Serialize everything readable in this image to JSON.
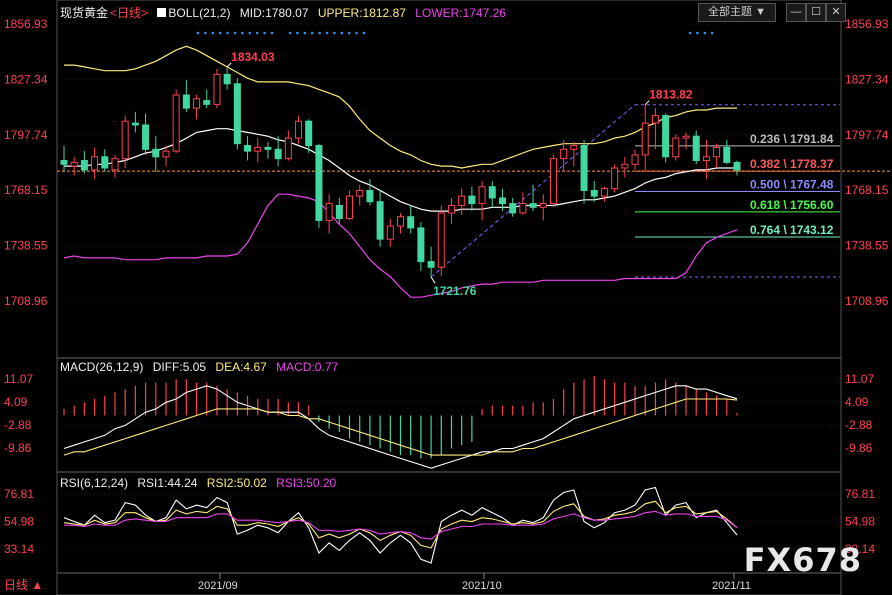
{
  "header": {
    "instrument": "现货黄金",
    "period": "日线",
    "boll": {
      "label": "BOLL(21,2)",
      "mid": "MID:1780.07",
      "upper": "UPPER:1812.87",
      "lower": "LOWER:1747.26"
    },
    "dropdown": "全部主题",
    "macd": {
      "label": "MACD(26,12,9)",
      "diff": "DIFF:5.05",
      "dea": "DEA:4.67",
      "macd": "MACD:0.77"
    },
    "rsi": {
      "label": "RSI(6,12,24)",
      "rsi1": "RSI1:44.24",
      "rsi2": "RSI2:50.02",
      "rsi3": "RSI3:50.20"
    }
  },
  "footer": {
    "period": "日线 ▲"
  },
  "watermark": "FX678",
  "colors": {
    "up": "#ff4050",
    "down": "#40d8a0",
    "boll_mid": "#ffffff",
    "boll_upper": "#ffeb7a",
    "boll_lower": "#ee44ee",
    "price_axis": "#ff4050"
  },
  "chart_data": [
    {
      "type": "candlestick",
      "title": "现货黄金 日线",
      "y_ticks": [
        1856.93,
        1827.34,
        1797.74,
        1768.15,
        1738.55,
        1708.96
      ],
      "ylim": [
        1702,
        1860
      ],
      "x_ticks": [
        "2021/09",
        "2021/10",
        "2021/11"
      ],
      "candles": [
        {
          "o": 1784,
          "h": 1792,
          "l": 1778,
          "c": 1782
        },
        {
          "o": 1781,
          "h": 1786,
          "l": 1776,
          "c": 1783
        },
        {
          "o": 1784,
          "h": 1789,
          "l": 1777,
          "c": 1779
        },
        {
          "o": 1779,
          "h": 1791,
          "l": 1774,
          "c": 1786
        },
        {
          "o": 1786,
          "h": 1790,
          "l": 1778,
          "c": 1780
        },
        {
          "o": 1779,
          "h": 1787,
          "l": 1775,
          "c": 1785
        },
        {
          "o": 1785,
          "h": 1808,
          "l": 1780,
          "c": 1805
        },
        {
          "o": 1804,
          "h": 1810,
          "l": 1799,
          "c": 1803
        },
        {
          "o": 1803,
          "h": 1809,
          "l": 1787,
          "c": 1790
        },
        {
          "o": 1790,
          "h": 1797,
          "l": 1778,
          "c": 1786
        },
        {
          "o": 1786,
          "h": 1792,
          "l": 1781,
          "c": 1789
        },
        {
          "o": 1789,
          "h": 1822,
          "l": 1788,
          "c": 1819
        },
        {
          "o": 1819,
          "h": 1827,
          "l": 1810,
          "c": 1812
        },
        {
          "o": 1812,
          "h": 1819,
          "l": 1806,
          "c": 1817
        },
        {
          "o": 1816,
          "h": 1822,
          "l": 1812,
          "c": 1814
        },
        {
          "o": 1814,
          "h": 1833,
          "l": 1812,
          "c": 1830
        },
        {
          "o": 1830,
          "h": 1834,
          "l": 1822,
          "c": 1825
        },
        {
          "o": 1825,
          "h": 1828,
          "l": 1790,
          "c": 1793
        },
        {
          "o": 1792,
          "h": 1797,
          "l": 1784,
          "c": 1789
        },
        {
          "o": 1789,
          "h": 1796,
          "l": 1783,
          "c": 1791
        },
        {
          "o": 1791,
          "h": 1794,
          "l": 1785,
          "c": 1790
        },
        {
          "o": 1790,
          "h": 1797,
          "l": 1781,
          "c": 1785
        },
        {
          "o": 1785,
          "h": 1800,
          "l": 1784,
          "c": 1796
        },
        {
          "o": 1796,
          "h": 1808,
          "l": 1793,
          "c": 1805
        },
        {
          "o": 1805,
          "h": 1806,
          "l": 1788,
          "c": 1792
        },
        {
          "o": 1792,
          "h": 1793,
          "l": 1748,
          "c": 1752
        },
        {
          "o": 1752,
          "h": 1766,
          "l": 1745,
          "c": 1761
        },
        {
          "o": 1760,
          "h": 1764,
          "l": 1750,
          "c": 1753
        },
        {
          "o": 1753,
          "h": 1768,
          "l": 1752,
          "c": 1765
        },
        {
          "o": 1765,
          "h": 1771,
          "l": 1760,
          "c": 1768
        },
        {
          "o": 1768,
          "h": 1774,
          "l": 1760,
          "c": 1762
        },
        {
          "o": 1762,
          "h": 1768,
          "l": 1738,
          "c": 1742
        },
        {
          "o": 1742,
          "h": 1753,
          "l": 1738,
          "c": 1749
        },
        {
          "o": 1749,
          "h": 1756,
          "l": 1745,
          "c": 1754
        },
        {
          "o": 1754,
          "h": 1760,
          "l": 1745,
          "c": 1748
        },
        {
          "o": 1748,
          "h": 1751,
          "l": 1725,
          "c": 1730
        },
        {
          "o": 1730,
          "h": 1738,
          "l": 1722,
          "c": 1727
        },
        {
          "o": 1727,
          "h": 1760,
          "l": 1722,
          "c": 1756
        },
        {
          "o": 1756,
          "h": 1764,
          "l": 1750,
          "c": 1760
        },
        {
          "o": 1760,
          "h": 1769,
          "l": 1755,
          "c": 1765
        },
        {
          "o": 1765,
          "h": 1770,
          "l": 1757,
          "c": 1761
        },
        {
          "o": 1761,
          "h": 1773,
          "l": 1752,
          "c": 1770
        },
        {
          "o": 1770,
          "h": 1773,
          "l": 1759,
          "c": 1764
        },
        {
          "o": 1764,
          "h": 1769,
          "l": 1757,
          "c": 1761
        },
        {
          "o": 1761,
          "h": 1764,
          "l": 1754,
          "c": 1756
        },
        {
          "o": 1756,
          "h": 1767,
          "l": 1755,
          "c": 1761
        },
        {
          "o": 1761,
          "h": 1771,
          "l": 1757,
          "c": 1759
        },
        {
          "o": 1759,
          "h": 1766,
          "l": 1752,
          "c": 1761
        },
        {
          "o": 1761,
          "h": 1787,
          "l": 1759,
          "c": 1785
        },
        {
          "o": 1785,
          "h": 1795,
          "l": 1778,
          "c": 1790
        },
        {
          "o": 1790,
          "h": 1794,
          "l": 1781,
          "c": 1792
        },
        {
          "o": 1792,
          "h": 1795,
          "l": 1761,
          "c": 1768
        },
        {
          "o": 1768,
          "h": 1773,
          "l": 1762,
          "c": 1765
        },
        {
          "o": 1765,
          "h": 1770,
          "l": 1762,
          "c": 1769
        },
        {
          "o": 1769,
          "h": 1782,
          "l": 1767,
          "c": 1780
        },
        {
          "o": 1780,
          "h": 1786,
          "l": 1775,
          "c": 1782
        },
        {
          "o": 1782,
          "h": 1790,
          "l": 1779,
          "c": 1787
        },
        {
          "o": 1787,
          "h": 1814,
          "l": 1778,
          "c": 1804
        },
        {
          "o": 1804,
          "h": 1812,
          "l": 1790,
          "c": 1808
        },
        {
          "o": 1808,
          "h": 1809,
          "l": 1783,
          "c": 1786
        },
        {
          "o": 1786,
          "h": 1798,
          "l": 1784,
          "c": 1796
        },
        {
          "o": 1796,
          "h": 1799,
          "l": 1790,
          "c": 1797
        },
        {
          "o": 1797,
          "h": 1800,
          "l": 1782,
          "c": 1784
        },
        {
          "o": 1784,
          "h": 1795,
          "l": 1774,
          "c": 1786
        },
        {
          "o": 1786,
          "h": 1793,
          "l": 1780,
          "c": 1791
        },
        {
          "o": 1791,
          "h": 1795,
          "l": 1782,
          "c": 1783
        },
        {
          "o": 1783,
          "h": 1784,
          "l": 1776,
          "c": 1779
        }
      ],
      "boll_mid": [
        1781,
        1781,
        1781,
        1782,
        1782,
        1783,
        1784,
        1786,
        1788,
        1789,
        1791,
        1793,
        1796,
        1799,
        1800,
        1801,
        1801,
        1800,
        1799,
        1798,
        1797,
        1795,
        1794,
        1792,
        1790,
        1787,
        1784,
        1780,
        1776,
        1773,
        1771,
        1768,
        1765,
        1762,
        1760,
        1758,
        1757,
        1757,
        1757,
        1758,
        1758,
        1758,
        1759,
        1759,
        1759,
        1760,
        1760,
        1760,
        1760,
        1761,
        1762,
        1763,
        1763,
        1764,
        1765,
        1767,
        1769,
        1772,
        1774,
        1775,
        1777,
        1778,
        1779,
        1779,
        1780,
        1780,
        1780
      ],
      "boll_upper": [
        1835,
        1835,
        1834,
        1833,
        1832,
        1832,
        1832,
        1833,
        1835,
        1837,
        1840,
        1843,
        1845,
        1843,
        1840,
        1837,
        1834,
        1831,
        1828,
        1826,
        1826,
        1826,
        1826,
        1825,
        1824,
        1822,
        1820,
        1818,
        1813,
        1806,
        1800,
        1796,
        1792,
        1789,
        1787,
        1784,
        1782,
        1781,
        1781,
        1780,
        1781,
        1782,
        1782,
        1784,
        1786,
        1788,
        1790,
        1791,
        1792,
        1793,
        1793,
        1793,
        1793,
        1794,
        1796,
        1797,
        1799,
        1802,
        1804,
        1807,
        1808,
        1810,
        1811,
        1811,
        1812,
        1812,
        1812
      ],
      "boll_lower": [
        1732,
        1733,
        1732,
        1732,
        1732,
        1732,
        1731,
        1731,
        1731,
        1731,
        1732,
        1732,
        1732,
        1732,
        1733,
        1733,
        1733,
        1734,
        1740,
        1750,
        1760,
        1766,
        1766,
        1765,
        1764,
        1762,
        1756,
        1750,
        1745,
        1738,
        1731,
        1726,
        1722,
        1716,
        1711,
        1711,
        1712,
        1713,
        1714,
        1716,
        1717,
        1718,
        1718,
        1719,
        1719,
        1719,
        1719,
        1720,
        1720,
        1720,
        1720,
        1720,
        1720,
        1720,
        1720,
        1721,
        1721,
        1721,
        1721,
        1721,
        1721,
        1724,
        1733,
        1740,
        1743,
        1745,
        1747
      ],
      "annotations": [
        {
          "text": "1834.03",
          "value": 1834.03,
          "kind": "high"
        },
        {
          "text": "1813.82",
          "value": 1813.82,
          "kind": "high"
        },
        {
          "text": "1721.76",
          "value": 1721.76,
          "kind": "low"
        }
      ],
      "fib_levels": [
        {
          "label": "0.236 \\ 1791.84",
          "value": 1791.84,
          "color": "#bbbbbb"
        },
        {
          "label": "0.382 \\ 1778.37",
          "value": 1778.37,
          "color": "#ff5a5a"
        },
        {
          "label": "0.500 \\ 1767.48",
          "value": 1767.48,
          "color": "#8a8aff"
        },
        {
          "label": "0.618 \\ 1756.60",
          "value": 1756.6,
          "color": "#44ff44"
        },
        {
          "label": "0.764 \\ 1743.12",
          "value": 1743.12,
          "color": "#70f0c0"
        }
      ],
      "fib_range": [
        1721.76,
        1813.82
      ],
      "last_price": 1778.37
    },
    {
      "type": "bar",
      "title": "MACD(26,12,9)",
      "y_ticks": [
        11.07,
        4.09,
        -2.88,
        -9.86
      ],
      "ylim": [
        -17,
        14
      ],
      "macd": [
        2,
        3,
        4,
        5,
        6,
        7,
        8,
        9,
        10,
        10,
        10,
        11,
        11,
        10,
        10,
        9,
        8,
        7,
        6,
        5,
        5,
        5,
        4,
        4,
        3,
        -2,
        -4,
        -5,
        -7,
        -8,
        -9,
        -10,
        -11,
        -12,
        -12,
        -13,
        -13,
        -12,
        -10,
        -9,
        -8,
        2,
        3,
        3,
        3,
        3,
        4,
        4,
        5,
        8,
        10,
        11,
        12,
        11,
        10,
        10,
        9,
        9,
        10,
        11,
        10,
        9,
        8,
        7,
        6,
        5,
        0.77
      ],
      "diff": [
        -10,
        -9,
        -8,
        -7,
        -6,
        -4,
        -3,
        -1,
        1,
        2,
        4,
        5,
        7,
        8,
        9,
        8,
        6,
        4,
        3,
        2,
        1,
        1,
        1,
        1,
        -1,
        -4,
        -6,
        -7,
        -8,
        -9,
        -10,
        -11,
        -12,
        -13,
        -14,
        -15,
        -16,
        -15,
        -14,
        -13,
        -12,
        -11,
        -11,
        -10,
        -10,
        -9,
        -8,
        -7,
        -5,
        -3,
        -1,
        0,
        1,
        2,
        3,
        4,
        5,
        6,
        7,
        8,
        9,
        9,
        8,
        8,
        7,
        6,
        5.05
      ],
      "dea": [
        -12,
        -11,
        -11,
        -10,
        -9,
        -8,
        -7,
        -6,
        -5,
        -4,
        -3,
        -2,
        -1,
        0,
        1,
        2,
        2,
        2,
        2,
        2,
        1,
        1,
        0,
        0,
        -1,
        -1,
        -2,
        -3,
        -4,
        -5,
        -6,
        -7,
        -8,
        -9,
        -10,
        -11,
        -12,
        -12,
        -12,
        -12,
        -12,
        -12,
        -11,
        -11,
        -11,
        -10,
        -10,
        -9,
        -8,
        -7,
        -6,
        -5,
        -4,
        -3,
        -2,
        -1,
        0,
        1,
        2,
        3,
        4,
        5,
        5,
        5,
        5,
        5,
        4.67
      ]
    },
    {
      "type": "line",
      "title": "RSI(6,12,24)",
      "y_ticks": [
        76.81,
        54.98,
        33.14
      ],
      "ylim": [
        24,
        86
      ],
      "series": [
        {
          "name": "RSI1",
          "color": "#ffffff",
          "values": [
            58,
            55,
            52,
            60,
            54,
            56,
            70,
            68,
            60,
            55,
            58,
            72,
            65,
            68,
            66,
            74,
            70,
            45,
            48,
            52,
            50,
            46,
            55,
            62,
            50,
            30,
            38,
            32,
            40,
            46,
            40,
            30,
            38,
            44,
            38,
            25,
            22,
            55,
            60,
            64,
            60,
            66,
            62,
            58,
            52,
            56,
            54,
            58,
            72,
            78,
            80,
            55,
            50,
            54,
            62,
            64,
            68,
            80,
            82,
            60,
            68,
            70,
            58,
            62,
            64,
            54,
            44.24
          ]
        },
        {
          "name": "RSI2",
          "color": "#ffeb7a",
          "values": [
            54,
            53,
            52,
            56,
            53,
            54,
            62,
            62,
            58,
            55,
            56,
            64,
            61,
            63,
            62,
            67,
            65,
            52,
            52,
            54,
            53,
            51,
            55,
            58,
            53,
            42,
            45,
            42,
            45,
            49,
            46,
            40,
            44,
            47,
            44,
            36,
            34,
            49,
            53,
            56,
            55,
            58,
            57,
            55,
            53,
            54,
            53,
            55,
            63,
            67,
            69,
            59,
            56,
            57,
            60,
            61,
            63,
            69,
            71,
            62,
            66,
            67,
            61,
            62,
            63,
            57,
            50.02
          ]
        },
        {
          "name": "RSI3",
          "color": "#ee44ee",
          "values": [
            52,
            52,
            51,
            53,
            52,
            52,
            56,
            57,
            56,
            55,
            55,
            58,
            58,
            58,
            58,
            61,
            61,
            56,
            56,
            56,
            55,
            54,
            55,
            56,
            54,
            48,
            48,
            47,
            48,
            49,
            48,
            45,
            46,
            47,
            46,
            42,
            41,
            47,
            49,
            51,
            51,
            53,
            53,
            53,
            52,
            52,
            52,
            53,
            57,
            59,
            61,
            58,
            56,
            56,
            57,
            58,
            59,
            62,
            63,
            60,
            61,
            61,
            59,
            59,
            59,
            56,
            50.2
          ]
        }
      ]
    }
  ]
}
